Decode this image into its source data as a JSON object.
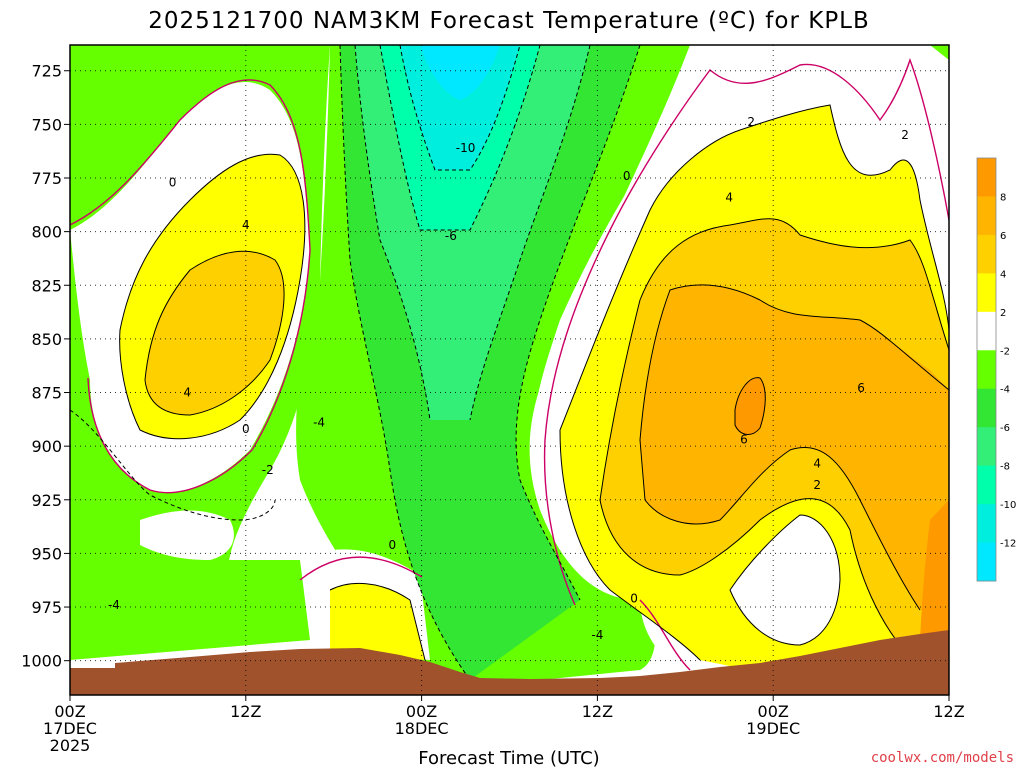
{
  "chart_data": {
    "type": "contour",
    "title": "2025121700 NAM3KM Forecast Temperature (ºC) for KPLB",
    "xlabel": "Forecast Time (UTC)",
    "ylabel": "",
    "credit": "coolwx.com/models",
    "x_ticks": [
      {
        "label": "00Z",
        "date": "17DEC",
        "year": "2025",
        "hour": 0
      },
      {
        "label": "12Z",
        "date": "",
        "year": "",
        "hour": 12
      },
      {
        "label": "00Z",
        "date": "18DEC",
        "year": "",
        "hour": 24
      },
      {
        "label": "12Z",
        "date": "",
        "year": "",
        "hour": 36
      },
      {
        "label": "00Z",
        "date": "19DEC",
        "year": "",
        "hour": 48
      },
      {
        "label": "12Z",
        "date": "",
        "year": "",
        "hour": 60
      }
    ],
    "xlim": [
      0,
      60
    ],
    "y_ticks": [
      725,
      750,
      775,
      800,
      825,
      850,
      875,
      900,
      925,
      950,
      975,
      1000
    ],
    "ylim": [
      1016,
      713
    ],
    "colorbar": {
      "levels": [
        8,
        6,
        4,
        2,
        -2,
        -4,
        -6,
        -8,
        -10,
        -12
      ],
      "colors": [
        "#ff9900",
        "#ffb400",
        "#ffd000",
        "#ffff00",
        "#ffffff",
        "#66ff00",
        "#33e633",
        "#33ee77",
        "#00ffaa",
        "#00eedd",
        "#00e8ff"
      ]
    },
    "contour_labels": [
      {
        "text": "0",
        "x": 7,
        "y": 777
      },
      {
        "text": "4",
        "x": 12,
        "y": 797
      },
      {
        "text": "4",
        "x": 8,
        "y": 875
      },
      {
        "text": "0",
        "x": 12,
        "y": 892
      },
      {
        "text": "-2",
        "x": 13.5,
        "y": 911
      },
      {
        "text": "-4",
        "x": 17,
        "y": 889
      },
      {
        "text": "-10",
        "x": 27,
        "y": 761
      },
      {
        "text": "-6",
        "x": 26,
        "y": 802
      },
      {
        "text": "0",
        "x": 22,
        "y": 946
      },
      {
        "text": "0",
        "x": 38,
        "y": 774
      },
      {
        "text": "2",
        "x": 46.5,
        "y": 749
      },
      {
        "text": "4",
        "x": 45,
        "y": 784
      },
      {
        "text": "2",
        "x": 57,
        "y": 755
      },
      {
        "text": "6",
        "x": 54,
        "y": 873
      },
      {
        "text": "6",
        "x": 46,
        "y": 897
      },
      {
        "text": "4",
        "x": 51,
        "y": 908
      },
      {
        "text": "2",
        "x": 51,
        "y": 918
      },
      {
        "text": "0",
        "x": 38.5,
        "y": 971
      },
      {
        "text": "-4",
        "x": 36,
        "y": 988
      },
      {
        "text": "-4",
        "x": 3,
        "y": 974
      }
    ]
  }
}
